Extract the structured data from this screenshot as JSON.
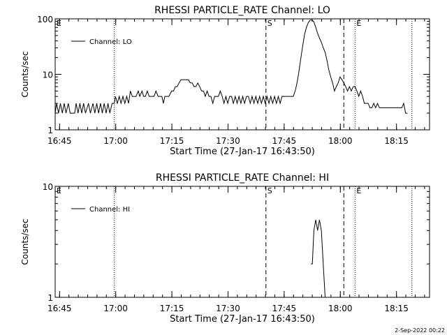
{
  "chart_data": [
    {
      "type": "line",
      "title": "RHESSI PARTICLE_RATE Channel: LO",
      "xlabel": "Start Time (27-Jan-17 16:43:50)",
      "ylabel": "Counts/sec",
      "x_unit": "minutes after 16:43:50",
      "xlim": [
        0,
        100
      ],
      "ylim": [
        1,
        100
      ],
      "y_scale": "log",
      "x_ticks": [
        {
          "v": 1.17,
          "label": "16:45"
        },
        {
          "v": 16.17,
          "label": "17:00"
        },
        {
          "v": 31.17,
          "label": "17:15"
        },
        {
          "v": 46.17,
          "label": "17:30"
        },
        {
          "v": 61.17,
          "label": "17:45"
        },
        {
          "v": 76.17,
          "label": "18:00"
        },
        {
          "v": 91.17,
          "label": "18:15"
        }
      ],
      "y_ticks": [
        {
          "v": 1,
          "label": "1"
        },
        {
          "v": 10,
          "label": "10"
        },
        {
          "v": 100,
          "label": "100"
        }
      ],
      "legend": {
        "label": "Channel: LO",
        "position": "top-left"
      },
      "markers": [
        {
          "x": 0,
          "label": "E",
          "style": "dotted"
        },
        {
          "x": 15.8,
          "label": "",
          "style": "dotted"
        },
        {
          "x": 56.3,
          "label": "S",
          "style": "dashed"
        },
        {
          "x": 77.1,
          "label": "",
          "style": "dashed"
        },
        {
          "x": 80.1,
          "label": "E",
          "style": "dotted"
        },
        {
          "x": 95.3,
          "label": "",
          "style": "dotted"
        }
      ],
      "series": [
        {
          "name": "Channel: LO",
          "points": [
            [
              0,
              2
            ],
            [
              0.4,
              3
            ],
            [
              0.9,
              2
            ],
            [
              1.4,
              3
            ],
            [
              1.9,
              2
            ],
            [
              2.4,
              3
            ],
            [
              2.9,
              2
            ],
            [
              3.5,
              3
            ],
            [
              4,
              2
            ],
            [
              5.2,
              2
            ],
            [
              5.6,
              3
            ],
            [
              6.1,
              2
            ],
            [
              6.6,
              3
            ],
            [
              7.1,
              2
            ],
            [
              7.6,
              3
            ],
            [
              8.1,
              2
            ],
            [
              8.9,
              3
            ],
            [
              9.4,
              2
            ],
            [
              10.1,
              3
            ],
            [
              10.6,
              2
            ],
            [
              11.1,
              3
            ],
            [
              11.6,
              2
            ],
            [
              12.1,
              3
            ],
            [
              12.6,
              2
            ],
            [
              13.1,
              3
            ],
            [
              13.6,
              2
            ],
            [
              14.1,
              3
            ],
            [
              14.6,
              2
            ],
            [
              15.2,
              3
            ],
            [
              15.8,
              3
            ],
            [
              16.1,
              4
            ],
            [
              16.6,
              3
            ],
            [
              17.1,
              4
            ],
            [
              17.6,
              3
            ],
            [
              18.1,
              4
            ],
            [
              18.6,
              3
            ],
            [
              19.1,
              4
            ],
            [
              19.6,
              3
            ],
            [
              20.1,
              5
            ],
            [
              20.6,
              4
            ],
            [
              21.6,
              4
            ],
            [
              22.2,
              5
            ],
            [
              22.6,
              4
            ],
            [
              23.2,
              5
            ],
            [
              23.6,
              4
            ],
            [
              24.1,
              4
            ],
            [
              24.6,
              5
            ],
            [
              25.1,
              4
            ],
            [
              26.4,
              4
            ],
            [
              26.9,
              5
            ],
            [
              27.5,
              4
            ],
            [
              28.5,
              4
            ],
            [
              28.9,
              3
            ],
            [
              29.3,
              4
            ],
            [
              30.4,
              4
            ],
            [
              31.1,
              5
            ],
            [
              31.6,
              5
            ],
            [
              32.1,
              6
            ],
            [
              32.6,
              6
            ],
            [
              33.1,
              7
            ],
            [
              33.6,
              8
            ],
            [
              34.6,
              8
            ],
            [
              35.1,
              8
            ],
            [
              35.6,
              8
            ],
            [
              36.1,
              7
            ],
            [
              36.6,
              7
            ],
            [
              37.1,
              6
            ],
            [
              37.6,
              6
            ],
            [
              38.1,
              7
            ],
            [
              38.6,
              6
            ],
            [
              39.1,
              5
            ],
            [
              39.6,
              5
            ],
            [
              40.1,
              4
            ],
            [
              40.6,
              5
            ],
            [
              41.1,
              4
            ],
            [
              41.6,
              4
            ],
            [
              42.1,
              3
            ],
            [
              42.6,
              4
            ],
            [
              43.6,
              4
            ],
            [
              44.1,
              5
            ],
            [
              44.6,
              4
            ],
            [
              45.1,
              3
            ],
            [
              45.6,
              4
            ],
            [
              46.1,
              3
            ],
            [
              46.6,
              4
            ],
            [
              47.1,
              4
            ],
            [
              47.6,
              3
            ],
            [
              48.1,
              4
            ],
            [
              48.6,
              3
            ],
            [
              49.1,
              4
            ],
            [
              49.6,
              3
            ],
            [
              50.1,
              4
            ],
            [
              50.6,
              3
            ],
            [
              51.1,
              4
            ],
            [
              51.6,
              4
            ],
            [
              52.1,
              3
            ],
            [
              52.6,
              4
            ],
            [
              53.1,
              3
            ],
            [
              53.6,
              4
            ],
            [
              54.1,
              3
            ],
            [
              54.6,
              4
            ],
            [
              55.1,
              3
            ],
            [
              55.6,
              4
            ],
            [
              56.1,
              3
            ],
            [
              56.6,
              4
            ],
            [
              57.1,
              3
            ],
            [
              57.6,
              4
            ],
            [
              58.1,
              3
            ],
            [
              58.6,
              4
            ],
            [
              59.1,
              3
            ],
            [
              59.6,
              4
            ],
            [
              60.1,
              3
            ],
            [
              60.6,
              4
            ],
            [
              61.1,
              4
            ],
            [
              63.6,
              4
            ],
            [
              64.1,
              5
            ],
            [
              64.6,
              7
            ],
            [
              65.1,
              11
            ],
            [
              65.6,
              19
            ],
            [
              66.1,
              32
            ],
            [
              66.6,
              52
            ],
            [
              67.1,
              70
            ],
            [
              67.6,
              85
            ],
            [
              68.1,
              95
            ],
            [
              68.6,
              95
            ],
            [
              69.1,
              88
            ],
            [
              69.6,
              70
            ],
            [
              70.1,
              55
            ],
            [
              70.6,
              45
            ],
            [
              71.1,
              38
            ],
            [
              71.6,
              30
            ],
            [
              72.1,
              25
            ],
            [
              72.6,
              18
            ],
            [
              73.1,
              12
            ],
            [
              73.6,
              9
            ],
            [
              74.1,
              7
            ],
            [
              74.6,
              5
            ],
            [
              75.1,
              6
            ],
            [
              75.6,
              7
            ],
            [
              76.1,
              9
            ],
            [
              76.6,
              8
            ],
            [
              77.1,
              7
            ],
            [
              77.6,
              6
            ],
            [
              78.1,
              5
            ],
            [
              78.6,
              6
            ],
            [
              79.1,
              5
            ],
            [
              79.6,
              6
            ],
            [
              80.1,
              6
            ],
            [
              80.6,
              5
            ],
            [
              81.1,
              4
            ],
            [
              81.6,
              5
            ],
            [
              82.1,
              4
            ],
            [
              82.6,
              3
            ],
            [
              83.1,
              3
            ],
            [
              83.6,
              3
            ],
            [
              84.1,
              2.5
            ],
            [
              84.6,
              2.5
            ],
            [
              85.1,
              3
            ],
            [
              85.6,
              2.5
            ],
            [
              86.1,
              3
            ],
            [
              86.6,
              2.5
            ],
            [
              87.1,
              2.5
            ],
            [
              91.6,
              2.5
            ],
            [
              92.1,
              2.5
            ],
            [
              92.6,
              2.5
            ],
            [
              93.1,
              3
            ],
            [
              93.6,
              2
            ],
            [
              94.1,
              2
            ]
          ]
        }
      ]
    },
    {
      "type": "line",
      "title": "RHESSI PARTICLE_RATE Channel: HI",
      "xlabel": "Start Time (27-Jan-17 16:43:50)",
      "ylabel": "Counts/sec",
      "x_unit": "minutes after 16:43:50",
      "xlim": [
        0,
        100
      ],
      "ylim": [
        1,
        10
      ],
      "y_scale": "log",
      "x_ticks": [
        {
          "v": 1.17,
          "label": "16:45"
        },
        {
          "v": 16.17,
          "label": "17:00"
        },
        {
          "v": 31.17,
          "label": "17:15"
        },
        {
          "v": 46.17,
          "label": "17:30"
        },
        {
          "v": 61.17,
          "label": "17:45"
        },
        {
          "v": 76.17,
          "label": "18:00"
        },
        {
          "v": 91.17,
          "label": "18:15"
        }
      ],
      "y_ticks": [
        {
          "v": 1,
          "label": "1"
        },
        {
          "v": 10,
          "label": "10"
        }
      ],
      "legend": {
        "label": "Channel: HI",
        "position": "top-left"
      },
      "markers": [
        {
          "x": 0,
          "label": "E",
          "style": "dotted"
        },
        {
          "x": 15.8,
          "label": "",
          "style": "dotted"
        },
        {
          "x": 56.3,
          "label": "S",
          "style": "dashed"
        },
        {
          "x": 77.1,
          "label": "",
          "style": "dashed"
        },
        {
          "x": 80.1,
          "label": "E",
          "style": "dotted"
        },
        {
          "x": 95.3,
          "label": "",
          "style": "dotted"
        }
      ],
      "series": [
        {
          "name": "Channel: HI",
          "points": [
            [
              68.3,
              2
            ],
            [
              68.7,
              2
            ],
            [
              69.1,
              4
            ],
            [
              69.6,
              5
            ],
            [
              70.1,
              4
            ],
            [
              70.6,
              5
            ],
            [
              71.1,
              4
            ],
            [
              71.6,
              2
            ],
            [
              72.1,
              1
            ]
          ]
        }
      ]
    }
  ],
  "footer": {
    "date": "2-Sep-2022 00:22"
  }
}
